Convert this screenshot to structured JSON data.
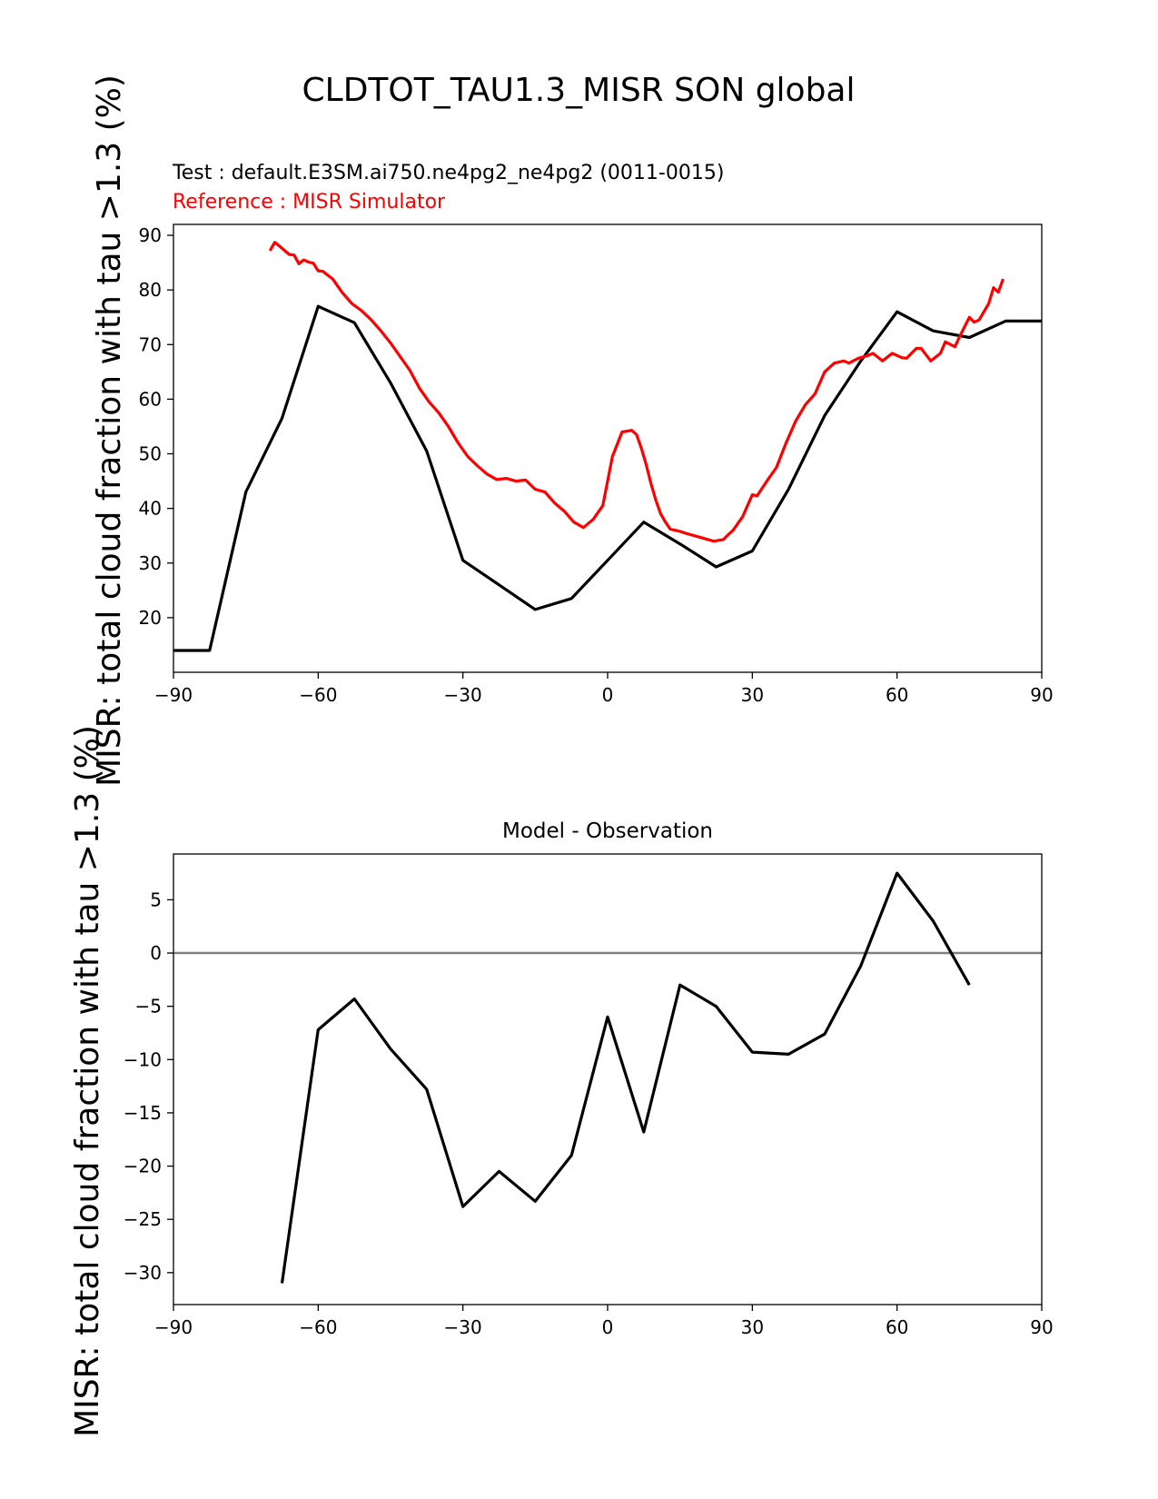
{
  "figure": {
    "suptitle": "CLDTOT_TAU1.3_MISR SON global"
  },
  "chart_data": [
    {
      "type": "line",
      "test_label": "Test : default.E3SM.ai750.ne4pg2_ne4pg2 (0011-0015)",
      "reference_label": "Reference : MISR Simulator",
      "ylabel": "MISR: total cloud fraction with tau >1.3 (%)",
      "xlim": [
        -90,
        90
      ],
      "ylim": [
        10,
        92
      ],
      "xticks": [
        -90,
        -60,
        -30,
        0,
        30,
        60,
        90
      ],
      "xtick_labels": [
        "−90",
        "−60",
        "−30",
        "0",
        "30",
        "60",
        "90"
      ],
      "yticks": [
        20,
        30,
        40,
        50,
        60,
        70,
        80,
        90
      ],
      "ytick_labels": [
        "20",
        "30",
        "40",
        "50",
        "60",
        "70",
        "80",
        "90"
      ],
      "grid": false,
      "series": [
        {
          "color": "#000000",
          "x": [
            -90,
            -82.5,
            -75,
            -67.5,
            -60,
            -52.5,
            -45,
            -37.5,
            -30,
            -22.5,
            -15,
            -7.5,
            0,
            7.5,
            15,
            22.5,
            30,
            37.5,
            45,
            52.5,
            60,
            67.5,
            75,
            82.5,
            90
          ],
          "y": [
            14,
            14,
            43,
            56.5,
            77,
            74,
            63,
            50.5,
            30.5,
            26,
            21.5,
            23.5,
            30.5,
            37.5,
            33.5,
            29.3,
            32.2,
            43.5,
            57,
            67,
            76,
            72.5,
            71.3,
            74.3,
            74.3
          ]
        },
        {
          "color": "#ff0000",
          "x": [
            -70,
            -69,
            -68,
            -66,
            -65,
            -64,
            -63,
            -62,
            -61,
            -60,
            -59,
            -57,
            -55,
            -53,
            -51,
            -49,
            -47,
            -45,
            -43,
            -41,
            -39,
            -37,
            -35,
            -33,
            -31,
            -29,
            -27,
            -25,
            -23,
            -21,
            -19,
            -17,
            -15,
            -13,
            -11,
            -9,
            -7,
            -5,
            -3,
            -1,
            0,
            1,
            3,
            5,
            6,
            7,
            8,
            9,
            10,
            11,
            12,
            13,
            14,
            15,
            16,
            18,
            20,
            22,
            24,
            25,
            26,
            28,
            30,
            31,
            33,
            35,
            37,
            39,
            41,
            43,
            45,
            47,
            49,
            50,
            52,
            54,
            55,
            57,
            59,
            61,
            62,
            64,
            65,
            67,
            69,
            70,
            72,
            73,
            75,
            76,
            77,
            79,
            80,
            81,
            82
          ],
          "y": [
            87.2,
            88.7,
            88,
            86.5,
            86.4,
            84.8,
            85.5,
            85.1,
            84.9,
            83.5,
            83.4,
            82,
            79.5,
            77.5,
            76.2,
            74.5,
            72.5,
            70.3,
            67.8,
            65.3,
            62,
            59.5,
            57.5,
            55,
            52,
            49.5,
            47.8,
            46.3,
            45.3,
            45.5,
            45,
            45.2,
            43.5,
            43,
            41,
            39.5,
            37.5,
            36.5,
            38,
            40.5,
            45,
            49.5,
            54,
            54.3,
            53.5,
            51,
            48,
            44.5,
            41.5,
            39,
            37.5,
            36.2,
            36,
            35.8,
            35.5,
            35,
            34.5,
            34,
            34.3,
            35.2,
            36,
            38.5,
            42.5,
            42.3,
            45,
            47.5,
            52,
            56,
            59,
            61,
            65,
            66.6,
            67,
            66.6,
            67.5,
            68,
            68.4,
            67,
            68.4,
            67.6,
            67.5,
            69.3,
            69.3,
            67,
            68.4,
            70.5,
            69.6,
            71.5,
            75,
            74.1,
            74.5,
            77.5,
            80.4,
            79.6,
            82
          ]
        }
      ]
    },
    {
      "type": "line",
      "title": "Model - Observation",
      "ylabel": "MISR: total cloud fraction with tau >1.3 (%)",
      "xlim": [
        -90,
        90
      ],
      "ylim": [
        -33,
        9.3
      ],
      "xticks": [
        -90,
        -60,
        -30,
        0,
        30,
        60,
        90
      ],
      "xtick_labels": [
        "−90",
        "−60",
        "−30",
        "0",
        "30",
        "60",
        "90"
      ],
      "yticks": [
        5,
        0,
        -5,
        -10,
        -15,
        -20,
        -25,
        -30
      ],
      "ytick_labels": [
        "5",
        "0",
        "−5",
        "−10",
        "−15",
        "−20",
        "−25",
        "−30"
      ],
      "zero_line_color": "#808080",
      "grid": false,
      "series": [
        {
          "color": "#000000",
          "x": [
            -67.5,
            -60,
            -52.5,
            -45,
            -37.5,
            -30,
            -22.5,
            -15,
            -7.5,
            0,
            7.5,
            15,
            22.5,
            30,
            37.5,
            45,
            52.5,
            60,
            67.5,
            75
          ],
          "y": [
            -31,
            -7.2,
            -4.3,
            -9,
            -12.8,
            -23.8,
            -20.5,
            -23.3,
            -19,
            -6,
            -16.8,
            -3,
            -5,
            -9.3,
            -9.5,
            -7.6,
            -1.2,
            7.5,
            3,
            -3
          ]
        }
      ]
    }
  ]
}
